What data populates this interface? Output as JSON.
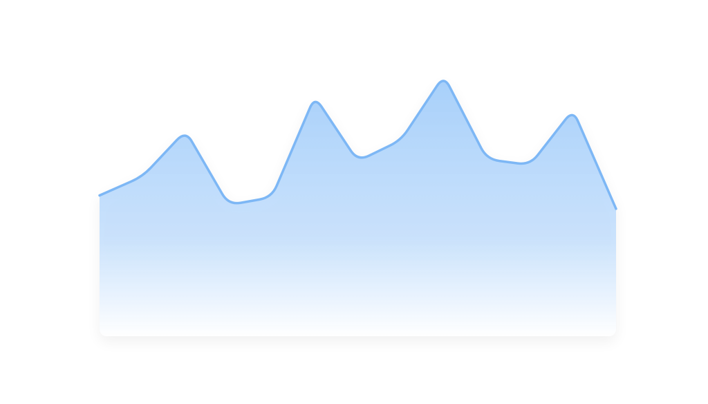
{
  "chart_data": {
    "type": "area",
    "x": [
      0,
      1,
      2,
      3,
      4,
      5,
      6,
      7,
      8,
      9,
      10,
      11,
      12
    ],
    "series": [
      {
        "values": [
          3.4,
          4.4,
          6.8,
          2.9,
          3.3,
          8.6,
          5.2,
          6.3,
          9.7,
          5.3,
          5.0,
          7.9,
          2.7
        ]
      }
    ],
    "xlim": [
      0,
      12
    ],
    "ylim": [
      -4,
      12
    ],
    "grid": false,
    "colors": {
      "line": "#7db7f5",
      "fill_top": "#a8d0fa",
      "fill_bottom": "#ffffff"
    }
  }
}
